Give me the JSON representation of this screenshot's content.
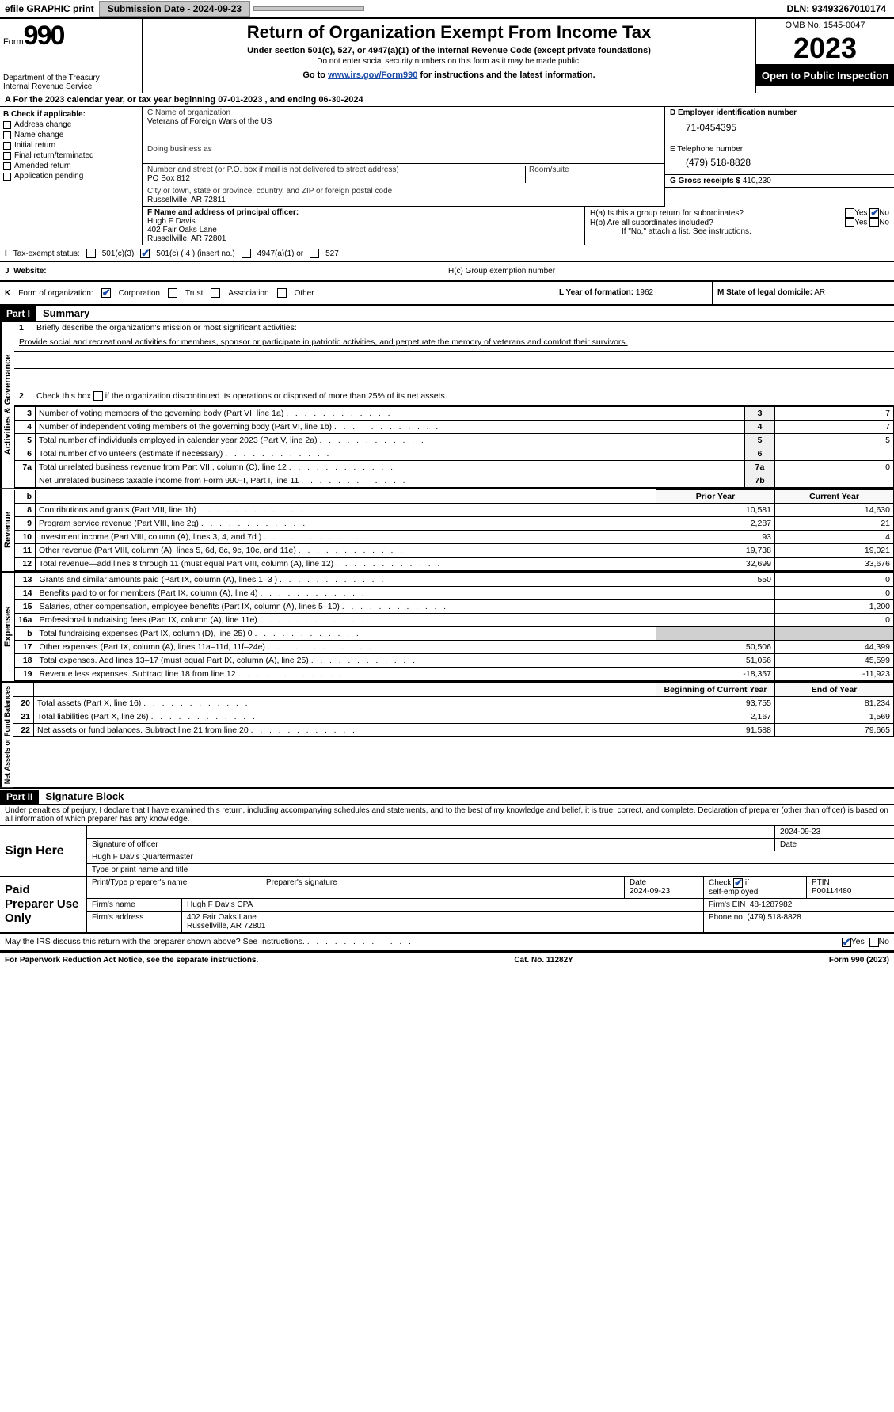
{
  "topbar": {
    "efile": "efile GRAPHIC print",
    "submission_label": "Submission Date",
    "submission_date": "2024-09-23",
    "dln_label": "DLN:",
    "dln": "93493267010174"
  },
  "header": {
    "form_label": "Form",
    "form_number": "990",
    "dept": "Department of the Treasury",
    "irs": "Internal Revenue Service",
    "title": "Return of Organization Exempt From Income Tax",
    "sub1": "Under section 501(c), 527, or 4947(a)(1) of the Internal Revenue Code (except private foundations)",
    "sub2": "Do not enter social security numbers on this form as it may be made public.",
    "sub3_pre": "Go to ",
    "sub3_link": "www.irs.gov/Form990",
    "sub3_post": " for instructions and the latest information.",
    "omb": "OMB No. 1545-0047",
    "year": "2023",
    "open": "Open to Public Inspection"
  },
  "row_a": "A  For the 2023 calendar year, or tax year beginning 07-01-2023   , and ending 06-30-2024",
  "col_b": {
    "hdr": "B Check if applicable:",
    "items": [
      "Address change",
      "Name change",
      "Initial return",
      "Final return/terminated",
      "Amended return",
      "Application pending"
    ]
  },
  "col_c": {
    "name_lbl": "C Name of organization",
    "name": "Veterans of Foreign Wars of the US",
    "dba_lbl": "Doing business as",
    "dba": "",
    "street_lbl": "Number and street (or P.O. box if mail is not delivered to street address)",
    "street": "PO Box 812",
    "room_lbl": "Room/suite",
    "room": "",
    "city_lbl": "City or town, state or province, country, and ZIP or foreign postal code",
    "city": "Russellville, AR  72811",
    "f_lbl": "F  Name and address of principal officer:",
    "f_name": "Hugh F Davis",
    "f_addr1": "402 Fair Oaks Lane",
    "f_addr2": "Russellville, AR  72801"
  },
  "col_d": {
    "ein_lbl": "D Employer identification number",
    "ein": "71-0454395",
    "tel_lbl": "E Telephone number",
    "tel": "(479) 518-8828",
    "g_lbl": "G Gross receipts $",
    "g_val": "410,230",
    "ha": "H(a)  Is this a group return for subordinates?",
    "ha_yes": "Yes",
    "ha_no": "No",
    "hb": "H(b)  Are all subordinates included?",
    "hb_yes": "Yes",
    "hb_no": "No",
    "hnote": "If \"No,\" attach a list. See instructions.",
    "hc": "H(c)  Group exemption number"
  },
  "taxex": {
    "i": "I",
    "lbl": "Tax-exempt status:",
    "c1": "501(c)(3)",
    "c2": "501(c) ( 4 ) (insert no.)",
    "c3": "4947(a)(1) or",
    "c4": "527"
  },
  "website": {
    "j": "J",
    "lbl": "Website:"
  },
  "kform": {
    "k": "K",
    "lbl": "Form of organization:",
    "corp": "Corporation",
    "trust": "Trust",
    "assoc": "Association",
    "other": "Other",
    "l_lbl": "L Year of formation:",
    "l_val": "1962",
    "m_lbl": "M State of legal domicile:",
    "m_val": "AR"
  },
  "part1": {
    "tab": "Part I",
    "title": "Summary",
    "side_gov": "Activities & Governance",
    "side_rev": "Revenue",
    "side_exp": "Expenses",
    "side_net": "Net Assets or Fund Balances",
    "line1_lbl": "1",
    "line1_a": "Briefly describe the organization's mission or most significant activities:",
    "line1_b": "Provide social and recreational activities for members, sponsor or participate in patriotic activities, and perpetuate the memory of veterans and comfort their survivors.",
    "line2_lbl": "2",
    "line2": "Check this box      if the organization discontinued its operations or disposed of more than 25% of its net assets.",
    "rows_gov": [
      {
        "n": "3",
        "d": "Number of voting members of the governing body (Part VI, line 1a)",
        "box": "3",
        "v": "7"
      },
      {
        "n": "4",
        "d": "Number of independent voting members of the governing body (Part VI, line 1b)",
        "box": "4",
        "v": "7"
      },
      {
        "n": "5",
        "d": "Total number of individuals employed in calendar year 2023 (Part V, line 2a)",
        "box": "5",
        "v": "5"
      },
      {
        "n": "6",
        "d": "Total number of volunteers (estimate if necessary)",
        "box": "6",
        "v": ""
      },
      {
        "n": "7a",
        "d": "Total unrelated business revenue from Part VIII, column (C), line 12",
        "box": "7a",
        "v": "0"
      },
      {
        "n": "",
        "d": "Net unrelated business taxable income from Form 990-T, Part I, line 11",
        "box": "7b",
        "v": ""
      }
    ],
    "prior_hdr": "Prior Year",
    "curr_hdr": "Current Year",
    "rows_rev": [
      {
        "n": "8",
        "d": "Contributions and grants (Part VIII, line 1h)",
        "p": "10,581",
        "c": "14,630"
      },
      {
        "n": "9",
        "d": "Program service revenue (Part VIII, line 2g)",
        "p": "2,287",
        "c": "21"
      },
      {
        "n": "10",
        "d": "Investment income (Part VIII, column (A), lines 3, 4, and 7d )",
        "p": "93",
        "c": "4"
      },
      {
        "n": "11",
        "d": "Other revenue (Part VIII, column (A), lines 5, 6d, 8c, 9c, 10c, and 11e)",
        "p": "19,738",
        "c": "19,021"
      },
      {
        "n": "12",
        "d": "Total revenue—add lines 8 through 11 (must equal Part VIII, column (A), line 12)",
        "p": "32,699",
        "c": "33,676"
      }
    ],
    "rows_exp": [
      {
        "n": "13",
        "d": "Grants and similar amounts paid (Part IX, column (A), lines 1–3 )",
        "p": "550",
        "c": "0"
      },
      {
        "n": "14",
        "d": "Benefits paid to or for members (Part IX, column (A), line 4)",
        "p": "",
        "c": "0"
      },
      {
        "n": "15",
        "d": "Salaries, other compensation, employee benefits (Part IX, column (A), lines 5–10)",
        "p": "",
        "c": "1,200"
      },
      {
        "n": "16a",
        "d": "Professional fundraising fees (Part IX, column (A), line 11e)",
        "p": "",
        "c": "0"
      },
      {
        "n": "b",
        "d": "Total fundraising expenses (Part IX, column (D), line 25) 0",
        "p": "GREY",
        "c": "GREY"
      },
      {
        "n": "17",
        "d": "Other expenses (Part IX, column (A), lines 11a–11d, 11f–24e)",
        "p": "50,506",
        "c": "44,399"
      },
      {
        "n": "18",
        "d": "Total expenses. Add lines 13–17 (must equal Part IX, column (A), line 25)",
        "p": "51,056",
        "c": "45,599"
      },
      {
        "n": "19",
        "d": "Revenue less expenses. Subtract line 18 from line 12",
        "p": "-18,357",
        "c": "-11,923"
      }
    ],
    "boy": "Beginning of Current Year",
    "eoy": "End of Year",
    "rows_net": [
      {
        "n": "20",
        "d": "Total assets (Part X, line 16)",
        "p": "93,755",
        "c": "81,234"
      },
      {
        "n": "21",
        "d": "Total liabilities (Part X, line 26)",
        "p": "2,167",
        "c": "1,569"
      },
      {
        "n": "22",
        "d": "Net assets or fund balances. Subtract line 21 from line 20",
        "p": "91,588",
        "c": "79,665"
      }
    ]
  },
  "part2": {
    "tab": "Part II",
    "title": "Signature Block",
    "decl": "Under penalties of perjury, I declare that I have examined this return, including accompanying schedules and statements, and to the best of my knowledge and belief, it is true, correct, and complete. Declaration of preparer (other than officer) is based on all information of which preparer has any knowledge.",
    "sign_here": "Sign Here",
    "sig_lbl": "Signature of officer",
    "sig_name": "Hugh F Davis Quartermaster",
    "sig_type": "Type or print name and title",
    "sig_date_lbl": "Date",
    "sig_date": "2024-09-23",
    "paid": "Paid Preparer Use Only",
    "prep_name_lbl": "Print/Type preparer's name",
    "prep_sig_lbl": "Preparer's signature",
    "prep_date_lbl": "Date",
    "prep_date": "2024-09-23",
    "self_lbl": "Check      if self-employed",
    "ptin_lbl": "PTIN",
    "ptin": "P00114480",
    "firm_name_lbl": "Firm's name",
    "firm_name": "Hugh F Davis CPA",
    "firm_ein_lbl": "Firm's EIN",
    "firm_ein": "48-1287982",
    "firm_addr_lbl": "Firm's address",
    "firm_addr1": "402 Fair Oaks Lane",
    "firm_addr2": "Russellville, AR  72801",
    "firm_phone_lbl": "Phone no.",
    "firm_phone": "(479) 518-8828",
    "discuss": "May the IRS discuss this return with the preparer shown above? See Instructions.",
    "yes": "Yes",
    "no": "No"
  },
  "footer": {
    "left": "For Paperwork Reduction Act Notice, see the separate instructions.",
    "mid": "Cat. No. 11282Y",
    "right": "Form 990 (2023)"
  }
}
